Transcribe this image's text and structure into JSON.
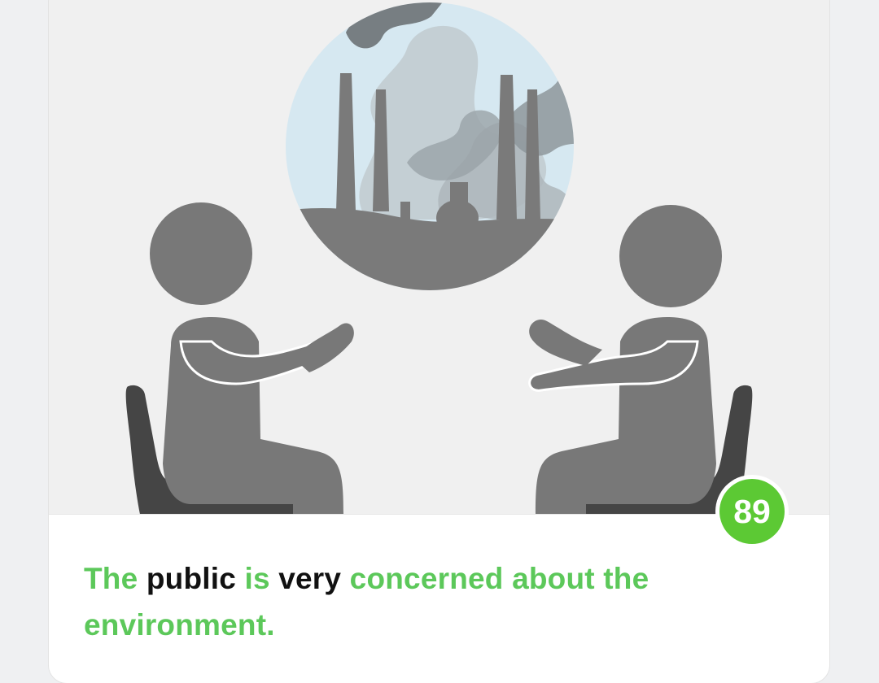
{
  "statement": {
    "w1": "The",
    "w2": "public",
    "w3": "is",
    "w4": "very",
    "w5": "concerned about the environment."
  },
  "score": "89",
  "colors": {
    "accent_green": "#5cc85a",
    "badge_green": "#5cc934",
    "emphasis": "#111111",
    "figure_gray": "#787878",
    "chair_dark": "#454545",
    "sky_blue": "#d4e7f0"
  },
  "icons": {
    "illustration": "people-discussing-pollution-icon",
    "thought_bubble": "factory-smoke-icon",
    "left_person": "seated-person-icon",
    "right_person": "seated-person-icon"
  }
}
